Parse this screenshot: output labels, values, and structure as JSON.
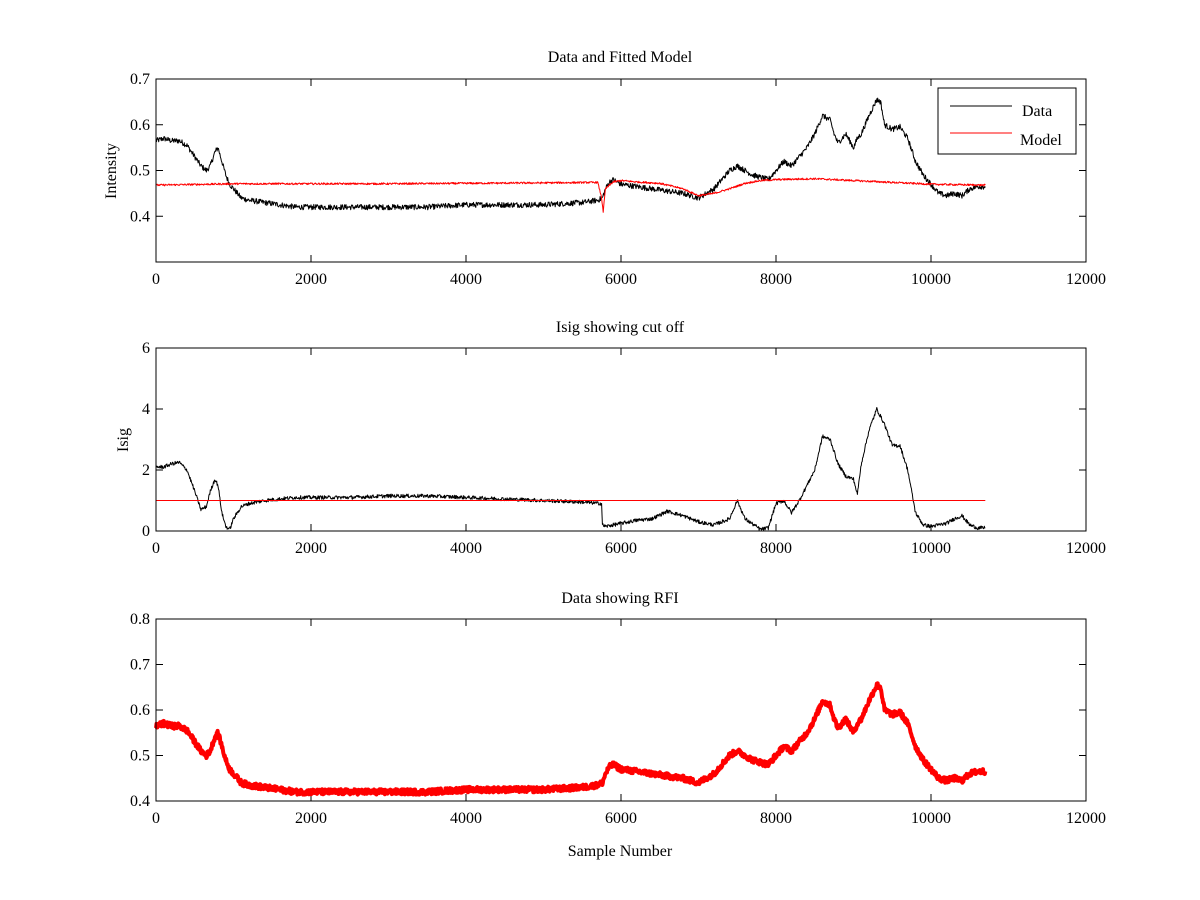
{
  "chart_data": [
    {
      "type": "line",
      "title": "Data and Fitted Model",
      "xlabel": "",
      "ylabel": "Intensity",
      "xlim": [
        0,
        12000
      ],
      "ylim": [
        0.3,
        0.7
      ],
      "xticks": [
        0,
        2000,
        4000,
        6000,
        8000,
        10000,
        12000
      ],
      "yticks": [
        0.4,
        0.5,
        0.6,
        0.7
      ],
      "legend": {
        "placement": "top-right",
        "entries": [
          "Data",
          "Model"
        ]
      },
      "series": [
        {
          "name": "Data",
          "color": "#000000",
          "noise": 0.006,
          "x": [
            0,
            100,
            200,
            300,
            400,
            500,
            580,
            650,
            700,
            760,
            800,
            850,
            900,
            950,
            1000,
            1050,
            1100,
            1200,
            1400,
            1600,
            1800,
            2000,
            2500,
            3000,
            3500,
            4000,
            4500,
            5000,
            5500,
            5700,
            5760,
            5800,
            5850,
            5900,
            6000,
            6200,
            6400,
            6600,
            6800,
            7000,
            7200,
            7300,
            7400,
            7500,
            7600,
            7700,
            7800,
            7900,
            8000,
            8100,
            8200,
            8300,
            8400,
            8500,
            8600,
            8700,
            8750,
            8800,
            8900,
            9000,
            9050,
            9100,
            9200,
            9300,
            9350,
            9400,
            9500,
            9600,
            9700,
            9800,
            9900,
            10000,
            10100,
            10200,
            10300,
            10400,
            10500,
            10600,
            10700
          ],
          "y": [
            0.565,
            0.57,
            0.565,
            0.565,
            0.555,
            0.53,
            0.51,
            0.5,
            0.51,
            0.54,
            0.55,
            0.52,
            0.49,
            0.47,
            0.46,
            0.45,
            0.44,
            0.435,
            0.43,
            0.425,
            0.42,
            0.42,
            0.42,
            0.42,
            0.42,
            0.425,
            0.425,
            0.425,
            0.43,
            0.435,
            0.44,
            0.46,
            0.475,
            0.48,
            0.47,
            0.465,
            0.46,
            0.455,
            0.45,
            0.44,
            0.46,
            0.48,
            0.5,
            0.51,
            0.5,
            0.49,
            0.485,
            0.48,
            0.5,
            0.52,
            0.51,
            0.53,
            0.55,
            0.58,
            0.62,
            0.61,
            0.58,
            0.56,
            0.58,
            0.55,
            0.57,
            0.58,
            0.62,
            0.655,
            0.65,
            0.6,
            0.59,
            0.595,
            0.57,
            0.52,
            0.49,
            0.47,
            0.45,
            0.445,
            0.45,
            0.445,
            0.46,
            0.465,
            0.465
          ]
        },
        {
          "name": "Model",
          "color": "#ff0000",
          "noise": 0.002,
          "x": [
            0,
            1000,
            2000,
            3000,
            4000,
            5000,
            5700,
            5750,
            5770,
            5800,
            5900,
            6000,
            6200,
            6500,
            6800,
            7000,
            7200,
            7400,
            7600,
            7800,
            8000,
            8200,
            8500,
            9000,
            9500,
            10000,
            10700
          ],
          "y": [
            0.468,
            0.471,
            0.471,
            0.471,
            0.472,
            0.473,
            0.474,
            0.44,
            0.41,
            0.46,
            0.475,
            0.478,
            0.475,
            0.472,
            0.46,
            0.445,
            0.45,
            0.46,
            0.472,
            0.478,
            0.48,
            0.481,
            0.482,
            0.478,
            0.474,
            0.47,
            0.468
          ]
        }
      ]
    },
    {
      "type": "line",
      "title": "Isig showing cut off",
      "xlabel": "",
      "ylabel": "Isig",
      "xlim": [
        0,
        12000
      ],
      "ylim": [
        0,
        6
      ],
      "xticks": [
        0,
        2000,
        4000,
        6000,
        8000,
        10000,
        12000
      ],
      "yticks": [
        0,
        2,
        4,
        6
      ],
      "series": [
        {
          "color": "#000000",
          "noise": 0.06,
          "x": [
            0,
            100,
            200,
            300,
            400,
            500,
            580,
            650,
            700,
            760,
            800,
            850,
            900,
            950,
            1000,
            1100,
            1200,
            1400,
            1600,
            1800,
            2000,
            2500,
            3000,
            3500,
            4000,
            4500,
            5000,
            5500,
            5750,
            5760,
            5800,
            5900,
            6000,
            6200,
            6400,
            6600,
            6800,
            7000,
            7200,
            7400,
            7500,
            7600,
            7800,
            7900,
            8000,
            8100,
            8200,
            8300,
            8400,
            8500,
            8600,
            8700,
            8800,
            8900,
            9000,
            9050,
            9100,
            9200,
            9300,
            9400,
            9500,
            9600,
            9700,
            9800,
            9900,
            10000,
            10100,
            10200,
            10300,
            10400,
            10500,
            10600,
            10700
          ],
          "y": [
            2.1,
            2.1,
            2.2,
            2.25,
            2.0,
            1.3,
            0.7,
            0.8,
            1.3,
            1.7,
            1.5,
            0.6,
            0.15,
            0.05,
            0.4,
            0.8,
            0.9,
            1.0,
            1.05,
            1.1,
            1.1,
            1.1,
            1.15,
            1.15,
            1.1,
            1.05,
            1.0,
            0.95,
            0.9,
            0.2,
            0.15,
            0.2,
            0.25,
            0.35,
            0.4,
            0.65,
            0.5,
            0.3,
            0.2,
            0.4,
            1.0,
            0.4,
            0.05,
            0.1,
            0.9,
            1.0,
            0.6,
            1.0,
            1.5,
            2.0,
            3.1,
            3.0,
            2.2,
            1.8,
            1.7,
            1.2,
            2.2,
            3.3,
            4.0,
            3.5,
            2.8,
            2.8,
            2.0,
            0.6,
            0.2,
            0.15,
            0.2,
            0.25,
            0.4,
            0.5,
            0.2,
            0.1,
            0.1
          ]
        },
        {
          "color": "#ff0000",
          "noise": 0,
          "x": [
            0,
            10700
          ],
          "y": [
            1.0,
            1.0
          ]
        }
      ]
    },
    {
      "type": "line",
      "title": "Data showing RFI",
      "xlabel": "Sample Number",
      "ylabel": "",
      "xlim": [
        0,
        12000
      ],
      "ylim": [
        0.4,
        0.8
      ],
      "xticks": [
        0,
        2000,
        4000,
        6000,
        8000,
        10000,
        12000
      ],
      "yticks": [
        0.4,
        0.5,
        0.6,
        0.7,
        0.8
      ],
      "series": [
        {
          "color": "#ff0000",
          "noise": 0.006,
          "thick": true,
          "x": [
            0,
            100,
            200,
            300,
            400,
            500,
            580,
            650,
            700,
            760,
            800,
            850,
            900,
            950,
            1000,
            1050,
            1100,
            1200,
            1400,
            1600,
            1800,
            2000,
            2500,
            3000,
            3500,
            4000,
            4500,
            5000,
            5500,
            5700,
            5760,
            5800,
            5850,
            5900,
            6000,
            6200,
            6400,
            6600,
            6800,
            7000,
            7200,
            7300,
            7400,
            7500,
            7600,
            7700,
            7800,
            7900,
            8000,
            8100,
            8200,
            8300,
            8400,
            8500,
            8600,
            8700,
            8750,
            8800,
            8900,
            9000,
            9050,
            9100,
            9200,
            9300,
            9350,
            9400,
            9500,
            9600,
            9700,
            9800,
            9900,
            10000,
            10100,
            10200,
            10300,
            10400,
            10500,
            10600,
            10700
          ],
          "y": [
            0.565,
            0.57,
            0.565,
            0.565,
            0.555,
            0.53,
            0.51,
            0.5,
            0.51,
            0.54,
            0.55,
            0.52,
            0.49,
            0.47,
            0.46,
            0.45,
            0.44,
            0.435,
            0.43,
            0.425,
            0.42,
            0.42,
            0.42,
            0.42,
            0.42,
            0.425,
            0.425,
            0.425,
            0.43,
            0.435,
            0.44,
            0.46,
            0.475,
            0.48,
            0.47,
            0.465,
            0.46,
            0.455,
            0.45,
            0.44,
            0.46,
            0.48,
            0.5,
            0.51,
            0.5,
            0.49,
            0.485,
            0.48,
            0.5,
            0.52,
            0.51,
            0.53,
            0.55,
            0.58,
            0.62,
            0.61,
            0.58,
            0.56,
            0.58,
            0.55,
            0.57,
            0.58,
            0.62,
            0.655,
            0.65,
            0.6,
            0.59,
            0.595,
            0.57,
            0.52,
            0.49,
            0.47,
            0.45,
            0.445,
            0.45,
            0.445,
            0.46,
            0.465,
            0.465
          ]
        }
      ]
    }
  ]
}
